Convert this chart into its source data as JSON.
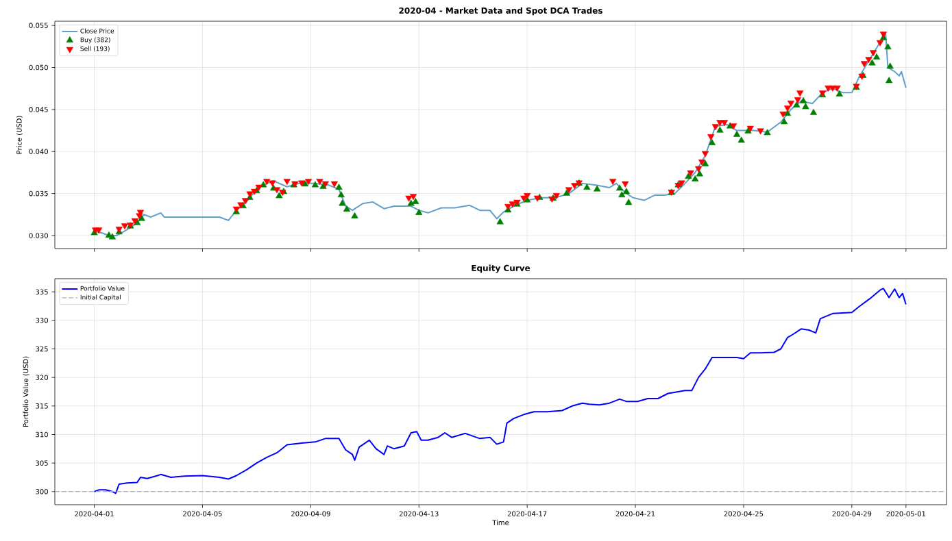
{
  "chart_data": [
    {
      "type": "line",
      "title": "2020-04 - Market Data and Spot DCA Trades",
      "ylabel": "Price (USD)",
      "xlim": [
        "2020-03-30T13:00",
        "2020-05-02T12:00"
      ],
      "xticks": [
        {
          "value": "2020-04-01",
          "label": null
        },
        {
          "value": "2020-04-05",
          "label": null
        },
        {
          "value": "2020-04-09",
          "label": null
        },
        {
          "value": "2020-04-13",
          "label": null
        },
        {
          "value": "2020-04-17",
          "label": null
        },
        {
          "value": "2020-04-21",
          "label": null
        },
        {
          "value": "2020-04-25",
          "label": null
        },
        {
          "value": "2020-04-29",
          "label": null
        },
        {
          "value": "2020-05-01",
          "label": null
        }
      ],
      "ylim": [
        0.02845,
        0.0555
      ],
      "yticks": [
        {
          "value": 0.03,
          "label": "0.030"
        },
        {
          "value": 0.035,
          "label": "0.035"
        },
        {
          "value": 0.04,
          "label": "0.040"
        },
        {
          "value": 0.045,
          "label": "0.045"
        },
        {
          "value": 0.05,
          "label": "0.050"
        },
        {
          "value": 0.055,
          "label": "0.055"
        }
      ],
      "tick_labels": "y",
      "grid": true,
      "legend": "top left",
      "series": [
        {
          "name": "Close Price",
          "color": "#629fcb",
          "marker": "none",
          "x": [
            "2020-04-01T00:00",
            "2020-04-01T07:00",
            "2020-04-01T13:00",
            "2020-04-01T20:00",
            "2020-04-02T05:00",
            "2020-04-02T14:00",
            "2020-04-02T20:00",
            "2020-04-03T02:00",
            "2020-04-03T11:00",
            "2020-04-03T14:00",
            "2020-04-04T02:00",
            "2020-04-05T00:00",
            "2020-04-05T15:00",
            "2020-04-05T23:00",
            "2020-04-06T06:00",
            "2020-04-06T15:00",
            "2020-04-07T00:00",
            "2020-04-07T06:00",
            "2020-04-07T15:00",
            "2020-04-08T03:00",
            "2020-04-08T16:00",
            "2020-04-09T04:00",
            "2020-04-09T16:00",
            "2020-04-10T01:00",
            "2020-04-10T07:00",
            "2020-04-10T13:00",
            "2020-04-10T22:00",
            "2020-04-11T07:00",
            "2020-04-11T17:00",
            "2020-04-12T02:00",
            "2020-04-12T17:00",
            "2020-04-13T00:00",
            "2020-04-13T08:00",
            "2020-04-13T20:00",
            "2020-04-14T08:00",
            "2020-04-14T21:00",
            "2020-04-15T06:00",
            "2020-04-15T15:00",
            "2020-04-15T21:00",
            "2020-04-16T03:00",
            "2020-04-16T12:00",
            "2020-04-17T00:00",
            "2020-04-17T12:00",
            "2020-04-18T01:00",
            "2020-04-18T13:00",
            "2020-04-19T01:00",
            "2020-04-19T13:00",
            "2020-04-20T01:00",
            "2020-04-20T07:00",
            "2020-04-20T16:00",
            "2020-04-20T22:00",
            "2020-04-21T08:00",
            "2020-04-21T17:00",
            "2020-04-22T02:00",
            "2020-04-22T11:00",
            "2020-04-22T20:00",
            "2020-04-23T05:00",
            "2020-04-23T14:00",
            "2020-04-23T23:00",
            "2020-04-24T09:00",
            "2020-04-24T18:00",
            "2020-04-25T00:00",
            "2020-04-25T09:00",
            "2020-04-25T21:00",
            "2020-04-26T09:00",
            "2020-04-26T18:00",
            "2020-04-27T03:00",
            "2020-04-27T13:00",
            "2020-04-27T22:00",
            "2020-04-28T07:00",
            "2020-04-28T16:00",
            "2020-04-29T00:00",
            "2020-04-29T07:00",
            "2020-04-29T16:00",
            "2020-04-30T01:00",
            "2020-04-30T06:00",
            "2020-04-30T08:00",
            "2020-04-30T14:00",
            "2020-04-30T18:00",
            "2020-04-30T20:00",
            "2020-05-01T00:00"
          ],
          "values": [
            0.0305,
            0.0303,
            0.03,
            0.03,
            0.0307,
            0.0315,
            0.0325,
            0.0322,
            0.0327,
            0.0322,
            0.0322,
            0.0322,
            0.0322,
            0.0318,
            0.033,
            0.034,
            0.0355,
            0.036,
            0.0365,
            0.0358,
            0.0363,
            0.0362,
            0.036,
            0.0355,
            0.0335,
            0.033,
            0.0338,
            0.034,
            0.0332,
            0.0335,
            0.0335,
            0.033,
            0.0327,
            0.0333,
            0.0333,
            0.0336,
            0.033,
            0.033,
            0.032,
            0.0328,
            0.0335,
            0.0342,
            0.0345,
            0.0345,
            0.035,
            0.0362,
            0.036,
            0.0357,
            0.0362,
            0.035,
            0.0345,
            0.0342,
            0.0348,
            0.0348,
            0.035,
            0.0362,
            0.0375,
            0.0395,
            0.043,
            0.0432,
            0.0425,
            0.0425,
            0.0425,
            0.0423,
            0.0435,
            0.045,
            0.046,
            0.0457,
            0.047,
            0.0475,
            0.047,
            0.047,
            0.049,
            0.051,
            0.053,
            0.054,
            0.05,
            0.0495,
            0.049,
            0.0495,
            0.0476
          ]
        },
        {
          "name": "Buy (382)",
          "type": "scatter",
          "color": "#008000",
          "marker": "triangle",
          "x": [
            "2020-04-01T00:00",
            "2020-04-01T13:00",
            "2020-04-01T16:00",
            "2020-04-01T22:00",
            "2020-04-02T08:00",
            "2020-04-02T14:00",
            "2020-04-02T18:00",
            "2020-04-06T06:00",
            "2020-04-06T12:00",
            "2020-04-06T18:00",
            "2020-04-07T00:00",
            "2020-04-07T06:00",
            "2020-04-07T15:00",
            "2020-04-07T20:00",
            "2020-04-08T00:00",
            "2020-04-08T09:00",
            "2020-04-08T19:00",
            "2020-04-09T04:00",
            "2020-04-09T11:00",
            "2020-04-10T01:00",
            "2020-04-10T03:00",
            "2020-04-10T04:00",
            "2020-04-10T08:00",
            "2020-04-10T15:00",
            "2020-04-12T17:00",
            "2020-04-12T21:00",
            "2020-04-13T00:00",
            "2020-04-16T00:00",
            "2020-04-16T07:00",
            "2020-04-16T15:00",
            "2020-04-17T00:00",
            "2020-04-17T11:00",
            "2020-04-17T23:00",
            "2020-04-18T11:00",
            "2020-04-18T22:00",
            "2020-04-19T05:00",
            "2020-04-19T14:00",
            "2020-04-20T10:00",
            "2020-04-20T12:00",
            "2020-04-20T16:00",
            "2020-04-20T18:00",
            "2020-04-22T08:00",
            "2020-04-22T14:00",
            "2020-04-22T23:00",
            "2020-04-23T05:00",
            "2020-04-23T09:00",
            "2020-04-23T14:00",
            "2020-04-23T20:00",
            "2020-04-24T03:00",
            "2020-04-24T12:00",
            "2020-04-24T18:00",
            "2020-04-24T22:00",
            "2020-04-25T04:00",
            "2020-04-25T21:00",
            "2020-04-26T12:00",
            "2020-04-26T15:00",
            "2020-04-26T23:00",
            "2020-04-27T05:00",
            "2020-04-27T07:00",
            "2020-04-27T14:00",
            "2020-04-27T22:00",
            "2020-04-28T13:00",
            "2020-04-29T04:00",
            "2020-04-29T10:00",
            "2020-04-29T18:00",
            "2020-04-29T22:00",
            "2020-04-30T04:00",
            "2020-04-30T08:00",
            "2020-04-30T09:00",
            "2020-04-30T10:00"
          ],
          "values": [
            0.0303,
            0.03,
            0.0298,
            0.0304,
            0.0311,
            0.0315,
            0.032,
            0.0328,
            0.0335,
            0.0345,
            0.0353,
            0.036,
            0.0356,
            0.0347,
            0.0352,
            0.036,
            0.0361,
            0.036,
            0.0358,
            0.0357,
            0.0348,
            0.0338,
            0.0331,
            0.0323,
            0.0338,
            0.034,
            0.0327,
            0.0316,
            0.033,
            0.0337,
            0.0342,
            0.0345,
            0.0344,
            0.035,
            0.0362,
            0.0357,
            0.0355,
            0.0356,
            0.0348,
            0.0352,
            0.0339,
            0.0351,
            0.036,
            0.037,
            0.0367,
            0.0373,
            0.0385,
            0.041,
            0.0425,
            0.043,
            0.042,
            0.0413,
            0.0424,
            0.0422,
            0.0435,
            0.0445,
            0.0455,
            0.046,
            0.0453,
            0.0446,
            0.0467,
            0.0468,
            0.0476,
            0.049,
            0.0505,
            0.0512,
            0.0535,
            0.0524,
            0.0484,
            0.0501
          ]
        },
        {
          "name": "Sell (193)",
          "type": "scatter",
          "color": "#ff0000",
          "marker": "triangle-down",
          "x": [
            "2020-04-01T01:00",
            "2020-04-01T04:00",
            "2020-04-01T22:00",
            "2020-04-02T03:00",
            "2020-04-02T08:00",
            "2020-04-02T12:00",
            "2020-04-02T16:00",
            "2020-04-02T17:00",
            "2020-04-06T06:00",
            "2020-04-06T10:00",
            "2020-04-06T14:00",
            "2020-04-06T18:00",
            "2020-04-06T22:00",
            "2020-04-07T02:00",
            "2020-04-07T09:00",
            "2020-04-07T14:00",
            "2020-04-07T18:00",
            "2020-04-07T23:00",
            "2020-04-08T03:00",
            "2020-04-08T10:00",
            "2020-04-08T16:00",
            "2020-04-08T22:00",
            "2020-04-09T08:00",
            "2020-04-09T13:00",
            "2020-04-09T21:00",
            "2020-04-12T15:00",
            "2020-04-12T19:00",
            "2020-04-16T07:00",
            "2020-04-16T11:00",
            "2020-04-16T15:00",
            "2020-04-16T21:00",
            "2020-04-17T00:00",
            "2020-04-17T09:00",
            "2020-04-17T22:00",
            "2020-04-18T02:00",
            "2020-04-18T13:00",
            "2020-04-18T18:00",
            "2020-04-18T22:00",
            "2020-04-20T04:00",
            "2020-04-20T15:00",
            "2020-04-22T08:00",
            "2020-04-22T14:00",
            "2020-04-22T17:00",
            "2020-04-23T01:00",
            "2020-04-23T08:00",
            "2020-04-23T11:00",
            "2020-04-23T14:00",
            "2020-04-23T19:00",
            "2020-04-23T23:00",
            "2020-04-24T03:00",
            "2020-04-24T07:00",
            "2020-04-24T15:00",
            "2020-04-25T06:00",
            "2020-04-25T15:00",
            "2020-04-26T11:00",
            "2020-04-26T15:00",
            "2020-04-26T18:00",
            "2020-04-27T00:00",
            "2020-04-27T02:00",
            "2020-04-27T22:00",
            "2020-04-28T03:00",
            "2020-04-28T07:00",
            "2020-04-28T11:00",
            "2020-04-29T04:00",
            "2020-04-29T09:00",
            "2020-04-29T11:00",
            "2020-04-29T15:00",
            "2020-04-29T19:00",
            "2020-04-30T01:00",
            "2020-04-30T04:00"
          ],
          "values": [
            0.0307,
            0.0307,
            0.0308,
            0.0312,
            0.0313,
            0.0318,
            0.0324,
            0.0328,
            0.0332,
            0.0337,
            0.0342,
            0.035,
            0.0353,
            0.0358,
            0.0365,
            0.0363,
            0.0355,
            0.0352,
            0.0365,
            0.0362,
            0.0363,
            0.0365,
            0.0365,
            0.0362,
            0.0362,
            0.0345,
            0.0347,
            0.0335,
            0.0338,
            0.034,
            0.0345,
            0.0348,
            0.0345,
            0.0344,
            0.0348,
            0.0355,
            0.036,
            0.0363,
            0.0365,
            0.0362,
            0.0352,
            0.036,
            0.0363,
            0.0375,
            0.038,
            0.0388,
            0.0398,
            0.0418,
            0.043,
            0.0435,
            0.0435,
            0.0431,
            0.0428,
            0.0425,
            0.0445,
            0.0452,
            0.0458,
            0.0462,
            0.047,
            0.047,
            0.0476,
            0.0476,
            0.0476,
            0.0478,
            0.049,
            0.0505,
            0.051,
            0.0518,
            0.053,
            0.054
          ]
        }
      ]
    },
    {
      "type": "line",
      "title": "Equity Curve",
      "xlabel": "Time",
      "ylabel": "Portfolio Value (USD)",
      "xlim": [
        "2020-03-30T13:00",
        "2020-05-02T12:00"
      ],
      "xticks": [
        "2020-04-01",
        "2020-04-05",
        "2020-04-09",
        "2020-04-13",
        "2020-04-17",
        "2020-04-21",
        "2020-04-25",
        "2020-04-29",
        "2020-05-01"
      ],
      "ylim": [
        297.7,
        337.3
      ],
      "yticks": [
        300,
        305,
        310,
        315,
        320,
        325,
        330,
        335
      ],
      "grid": true,
      "legend": "top left",
      "ref_lines": [
        {
          "axis": "y",
          "value": 300,
          "label": "Initial Capital",
          "color": "#b0b0b0",
          "line_style": "dashed"
        }
      ],
      "series": [
        {
          "name": "Portfolio Value",
          "color": "#0000ff",
          "marker": "none",
          "x": [
            "2020-04-01T00:00",
            "2020-04-01T04:00",
            "2020-04-01T10:00",
            "2020-04-01T16:00",
            "2020-04-01T19:00",
            "2020-04-01T22:00",
            "2020-04-02T05:00",
            "2020-04-02T14:00",
            "2020-04-02T17:00",
            "2020-04-02T23:00",
            "2020-04-03T08:00",
            "2020-04-03T11:00",
            "2020-04-03T20:00",
            "2020-04-04T08:00",
            "2020-04-05T00:00",
            "2020-04-05T15:00",
            "2020-04-05T23:00",
            "2020-04-06T06:00",
            "2020-04-06T15:00",
            "2020-04-07T00:00",
            "2020-04-07T09:00",
            "2020-04-07T18:00",
            "2020-04-08T03:00",
            "2020-04-08T16:00",
            "2020-04-09T04:00",
            "2020-04-09T13:00",
            "2020-04-10T01:00",
            "2020-04-10T07:00",
            "2020-04-10T13:00",
            "2020-04-10T15:00",
            "2020-04-10T19:00",
            "2020-04-11T04:00",
            "2020-04-11T10:00",
            "2020-04-11T17:00",
            "2020-04-11T20:00",
            "2020-04-12T02:00",
            "2020-04-12T11:00",
            "2020-04-12T17:00",
            "2020-04-12T22:00",
            "2020-04-13T02:00",
            "2020-04-13T08:00",
            "2020-04-13T17:00",
            "2020-04-13T23:00",
            "2020-04-14T05:00",
            "2020-04-14T17:00",
            "2020-04-15T06:00",
            "2020-04-15T15:00",
            "2020-04-15T21:00",
            "2020-04-16T03:00",
            "2020-04-16T06:00",
            "2020-04-16T12:00",
            "2020-04-16T21:00",
            "2020-04-17T06:00",
            "2020-04-17T18:00",
            "2020-04-18T07:00",
            "2020-04-18T16:00",
            "2020-04-19T01:00",
            "2020-04-19T07:00",
            "2020-04-19T16:00",
            "2020-04-20T01:00",
            "2020-04-20T10:00",
            "2020-04-20T16:00",
            "2020-04-21T02:00",
            "2020-04-21T11:00",
            "2020-04-21T20:00",
            "2020-04-22T05:00",
            "2020-04-22T14:00",
            "2020-04-22T20:00",
            "2020-04-23T02:00",
            "2020-04-23T08:00",
            "2020-04-23T14:00",
            "2020-04-23T20:00",
            "2020-04-24T09:00",
            "2020-04-24T18:00",
            "2020-04-25T00:00",
            "2020-04-25T06:00",
            "2020-04-25T15:00",
            "2020-04-26T03:00",
            "2020-04-26T09:00",
            "2020-04-26T15:00",
            "2020-04-26T21:00",
            "2020-04-27T03:00",
            "2020-04-27T10:00",
            "2020-04-27T16:00",
            "2020-04-27T20:00",
            "2020-04-28T07:00",
            "2020-04-28T16:00",
            "2020-04-29T00:00",
            "2020-04-29T07:00",
            "2020-04-29T16:00",
            "2020-04-30T01:00",
            "2020-04-30T04:00",
            "2020-04-30T09:00",
            "2020-04-30T14:00",
            "2020-04-30T18:00",
            "2020-04-30T21:00",
            "2020-05-01T00:00"
          ],
          "values": [
            300.0,
            300.3,
            300.3,
            300.0,
            299.7,
            301.3,
            301.5,
            301.6,
            302.5,
            302.3,
            302.8,
            303.0,
            302.5,
            302.7,
            302.8,
            302.5,
            302.2,
            302.8,
            303.8,
            305.0,
            306.0,
            306.8,
            308.2,
            308.5,
            308.7,
            309.3,
            309.3,
            307.3,
            306.5,
            305.5,
            307.8,
            309.0,
            307.5,
            306.5,
            308.0,
            307.5,
            308.0,
            310.3,
            310.5,
            309.0,
            309.0,
            309.5,
            310.3,
            309.5,
            310.2,
            309.3,
            309.5,
            308.3,
            308.7,
            312.0,
            312.8,
            313.5,
            314.0,
            314.0,
            314.2,
            315.0,
            315.5,
            315.3,
            315.2,
            315.5,
            316.2,
            315.8,
            315.8,
            316.3,
            316.3,
            317.2,
            317.5,
            317.7,
            317.7,
            320.0,
            321.5,
            323.5,
            323.5,
            323.5,
            323.3,
            324.3,
            324.3,
            324.4,
            325.0,
            327.0,
            327.7,
            328.5,
            328.3,
            327.8,
            330.3,
            331.2,
            331.3,
            331.4,
            332.5,
            333.8,
            335.3,
            335.6,
            334.0,
            335.5,
            334.0,
            334.7,
            332.8
          ]
        }
      ]
    }
  ]
}
